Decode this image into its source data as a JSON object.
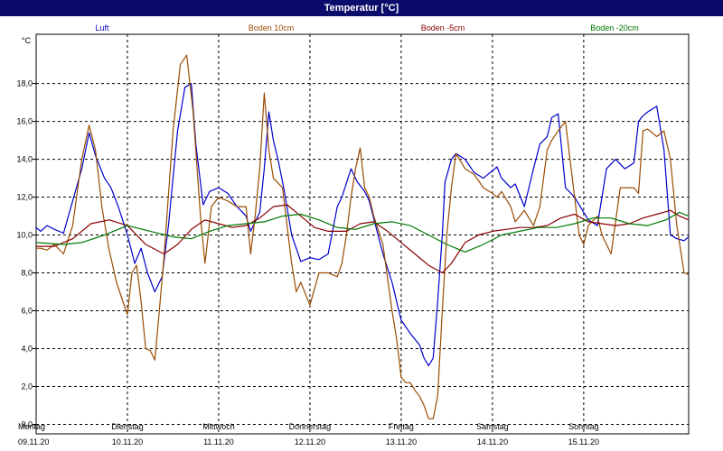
{
  "window": {
    "title": "Temperatur [°C]"
  },
  "chart_data": {
    "type": "line",
    "title": "Temperatur [°C]",
    "ylabel": "°C",
    "ylim": [
      -0.5,
      20.6
    ],
    "yticks": [
      0,
      2,
      4,
      6,
      8,
      10,
      12,
      14,
      16,
      18
    ],
    "ytick_labels": [
      "0,0",
      "2,0",
      "4,0",
      "6,0",
      "8,0",
      "10,0",
      "12,0",
      "14,0",
      "16,0",
      "18,0"
    ],
    "xlim": [
      0,
      7.15
    ],
    "grid": true,
    "legend_position": "top",
    "day_labels": [
      {
        "day": "Montag",
        "date": "09.11.20"
      },
      {
        "day": "Dienstag",
        "date": "10.11.20"
      },
      {
        "day": "Mittwoch",
        "date": "11.11.20"
      },
      {
        "day": "Donnerstag",
        "date": "12.11.20"
      },
      {
        "day": "Freitag",
        "date": "13.11.20"
      },
      {
        "day": "Samstag",
        "date": "14.11.20"
      },
      {
        "day": "Sonntag",
        "date": "15.11.20"
      }
    ],
    "series": [
      {
        "name": "Luft",
        "color": "#0000cc",
        "x": [
          0,
          0.05,
          0.12,
          0.2,
          0.3,
          0.4,
          0.5,
          0.58,
          0.65,
          0.75,
          0.82,
          0.9,
          1,
          1.08,
          1.15,
          1.22,
          1.3,
          1.38,
          1.45,
          1.55,
          1.63,
          1.7,
          1.75,
          1.83,
          1.9,
          2,
          2.1,
          2.2,
          2.3,
          2.35,
          2.45,
          2.5,
          2.55,
          2.6,
          2.65,
          2.72,
          2.8,
          2.9,
          3,
          3.1,
          3.2,
          3.3,
          3.35,
          3.45,
          3.52,
          3.6,
          3.65,
          3.72,
          3.8,
          3.9,
          4,
          4.1,
          4.2,
          4.25,
          4.3,
          4.35,
          4.4,
          4.45,
          4.48,
          4.55,
          4.6,
          4.7,
          4.8,
          4.9,
          5,
          5.05,
          5.1,
          5.2,
          5.25,
          5.35,
          5.45,
          5.52,
          5.6,
          5.65,
          5.72,
          5.8,
          5.9,
          6,
          6.05,
          6.15,
          6.25,
          6.35,
          6.45,
          6.55,
          6.6,
          6.65,
          6.7,
          6.8,
          6.88,
          6.95,
          7.02,
          7.1,
          7.15
        ],
        "values": [
          10.4,
          10.2,
          10.5,
          10.3,
          10.1,
          11.8,
          13.5,
          15.4,
          14.2,
          13.0,
          12.5,
          11.5,
          10.0,
          8.5,
          9.3,
          8.0,
          7.0,
          7.8,
          10.5,
          15.5,
          17.8,
          18.0,
          14.8,
          11.6,
          12.3,
          12.5,
          12.2,
          11.5,
          11.0,
          10.2,
          11.2,
          13.5,
          16.5,
          15.0,
          14.0,
          12.3,
          10.0,
          8.6,
          8.8,
          8.7,
          9.0,
          11.5,
          12.0,
          13.5,
          12.8,
          12.3,
          11.8,
          10.5,
          9.0,
          7.5,
          5.5,
          4.8,
          4.2,
          3.5,
          3.1,
          3.5,
          6.5,
          10.0,
          12.8,
          14.0,
          14.3,
          14.0,
          13.3,
          13.0,
          13.4,
          13.6,
          13.0,
          12.5,
          12.7,
          11.5,
          13.5,
          14.8,
          15.2,
          16.2,
          16.4,
          12.5,
          12.0,
          11.2,
          10.8,
          10.5,
          13.5,
          14.0,
          13.5,
          13.8,
          16.0,
          16.3,
          16.5,
          16.8,
          14.5,
          10.0,
          9.8,
          9.7,
          9.9
        ]
      },
      {
        "name": "Boden 10cm",
        "color": "#994c00",
        "x": [
          0,
          0.05,
          0.12,
          0.2,
          0.3,
          0.4,
          0.5,
          0.58,
          0.65,
          0.72,
          0.8,
          0.88,
          0.95,
          1,
          1.05,
          1.1,
          1.15,
          1.2,
          1.25,
          1.3,
          1.35,
          1.4,
          1.5,
          1.58,
          1.65,
          1.72,
          1.8,
          1.85,
          1.92,
          2,
          2.1,
          2.2,
          2.3,
          2.35,
          2.4,
          2.45,
          2.5,
          2.55,
          2.6,
          2.7,
          2.8,
          2.85,
          2.9,
          3,
          3.1,
          3.2,
          3.3,
          3.35,
          3.4,
          3.45,
          3.5,
          3.55,
          3.6,
          3.65,
          3.7,
          3.8,
          3.9,
          3.95,
          4,
          4.05,
          4.1,
          4.15,
          4.2,
          4.25,
          4.3,
          4.35,
          4.4,
          4.45,
          4.5,
          4.55,
          4.6,
          4.7,
          4.8,
          4.9,
          5,
          5.05,
          5.1,
          5.2,
          5.25,
          5.35,
          5.45,
          5.52,
          5.6,
          5.65,
          5.72,
          5.8,
          5.85,
          5.9,
          5.95,
          6,
          6.05,
          6.15,
          6.2,
          6.3,
          6.4,
          6.55,
          6.6,
          6.65,
          6.7,
          6.8,
          6.88,
          6.95,
          7.02,
          7.1,
          7.15
        ],
        "values": [
          9.3,
          9.3,
          9.2,
          9.5,
          9.0,
          10.5,
          14.0,
          15.8,
          14.5,
          11.5,
          9.2,
          7.5,
          6.5,
          5.8,
          8.0,
          8.4,
          6.5,
          4.0,
          3.9,
          3.4,
          6.0,
          8.8,
          15.5,
          19.0,
          19.5,
          16.5,
          11.0,
          8.5,
          11.5,
          12.0,
          11.8,
          11.5,
          11.5,
          9.0,
          11.0,
          13.5,
          17.5,
          14.5,
          13.0,
          12.5,
          8.5,
          7.0,
          7.5,
          6.3,
          8.0,
          8.0,
          7.8,
          8.5,
          10.0,
          12.0,
          13.5,
          14.6,
          12.5,
          12.0,
          11.0,
          9.5,
          6.0,
          4.5,
          2.5,
          2.2,
          2.2,
          1.8,
          1.5,
          1.0,
          0.3,
          0.3,
          1.5,
          6.0,
          10.0,
          12.5,
          14.3,
          13.5,
          13.2,
          12.5,
          12.2,
          12.0,
          12.3,
          11.5,
          10.7,
          11.3,
          10.5,
          11.5,
          14.5,
          15.0,
          15.5,
          16.0,
          14.0,
          12.0,
          10.0,
          9.5,
          10.5,
          11.0,
          10.0,
          9.0,
          12.5,
          12.5,
          12.2,
          15.5,
          15.6,
          15.2,
          15.5,
          14.0,
          10.5,
          8.0,
          7.9
        ]
      },
      {
        "name": "Boden -5cm",
        "color": "#880000",
        "x": [
          0,
          0.2,
          0.4,
          0.6,
          0.8,
          1,
          1.2,
          1.4,
          1.55,
          1.7,
          1.85,
          2,
          2.15,
          2.3,
          2.45,
          2.6,
          2.75,
          2.9,
          3.05,
          3.2,
          3.4,
          3.55,
          3.7,
          3.85,
          4,
          4.15,
          4.3,
          4.45,
          4.55,
          4.7,
          4.85,
          5,
          5.15,
          5.3,
          5.45,
          5.6,
          5.75,
          5.9,
          6.05,
          6.2,
          6.35,
          6.5,
          6.65,
          6.8,
          6.95,
          7.05,
          7.15
        ],
        "values": [
          9.4,
          9.4,
          9.8,
          10.6,
          10.8,
          10.5,
          9.5,
          9.0,
          9.5,
          10.3,
          10.8,
          10.6,
          10.4,
          10.5,
          10.9,
          11.5,
          11.6,
          11.0,
          10.4,
          10.2,
          10.2,
          10.6,
          10.7,
          10.2,
          9.6,
          9.0,
          8.4,
          8.0,
          8.5,
          9.6,
          10.0,
          10.2,
          10.3,
          10.4,
          10.4,
          10.5,
          10.9,
          11.1,
          10.7,
          10.6,
          10.5,
          10.6,
          10.9,
          11.1,
          11.3,
          11.0,
          10.8
        ]
      },
      {
        "name": "Boden -20cm",
        "color": "#007700",
        "x": [
          0,
          0.3,
          0.5,
          0.75,
          1,
          1.25,
          1.5,
          1.7,
          1.9,
          2.1,
          2.3,
          2.5,
          2.7,
          2.9,
          3.1,
          3.3,
          3.5,
          3.7,
          3.9,
          4.1,
          4.3,
          4.5,
          4.7,
          4.9,
          5.1,
          5.3,
          5.5,
          5.7,
          5.9,
          6.1,
          6.3,
          6.5,
          6.7,
          6.9,
          7.05,
          7.15
        ],
        "values": [
          9.6,
          9.5,
          9.6,
          10.0,
          10.5,
          10.2,
          9.9,
          9.8,
          10.2,
          10.5,
          10.6,
          10.7,
          11.0,
          11.1,
          10.8,
          10.4,
          10.3,
          10.6,
          10.7,
          10.5,
          10.0,
          9.5,
          9.1,
          9.5,
          10.0,
          10.2,
          10.4,
          10.4,
          10.6,
          10.9,
          10.9,
          10.6,
          10.5,
          10.8,
          11.2,
          11.0
        ]
      }
    ]
  }
}
